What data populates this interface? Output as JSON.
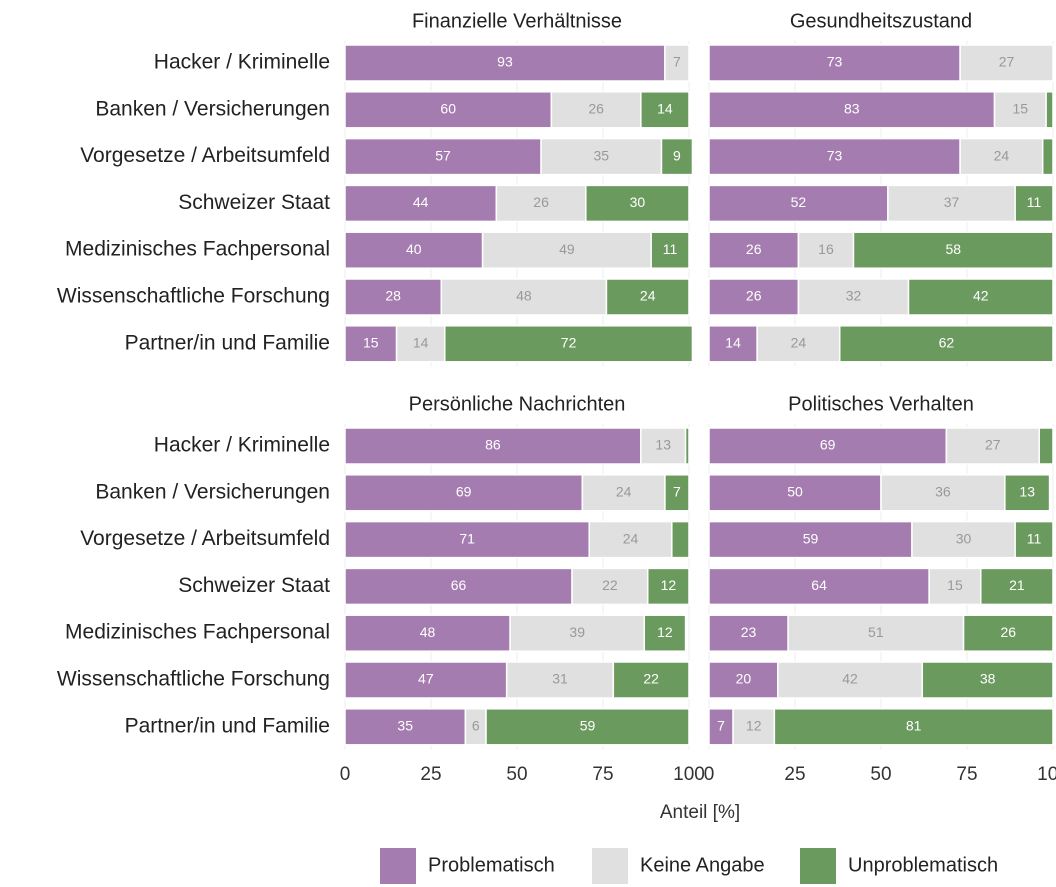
{
  "categories": [
    "Hacker / Kriminelle",
    "Banken / Versicherungen",
    "Vorgesetze / Arbeitsumfeld",
    "Schweizer Staat",
    "Medizinisches Fachpersonal",
    "Wissenschaftliche Forschung",
    "Partner/in und Familie"
  ],
  "xlim": [
    0,
    100
  ],
  "xticks": [
    0,
    25,
    50,
    75,
    100
  ],
  "xlabel": "Anteil [%]",
  "grid": true,
  "legend": [
    {
      "name": "Problematisch",
      "color": "#a57cb0"
    },
    {
      "name": "Keine Angabe",
      "color": "#e0e0e0"
    },
    {
      "name": "Unproblematisch",
      "color": "#6b9a5e"
    }
  ],
  "chart_data": [
    {
      "type": "bar",
      "title": "Finanzielle Verhältnisse",
      "series": [
        {
          "values": [
            93,
            60,
            57,
            44,
            40,
            28,
            15
          ],
          "value_labels": [
            "93",
            "60",
            "57",
            "44",
            "40",
            "28",
            "15"
          ]
        },
        {
          "values": [
            7,
            26,
            35,
            26,
            49,
            48,
            14
          ],
          "value_labels": [
            "7",
            "26",
            "35",
            "26",
            "49",
            "48",
            "14"
          ]
        },
        {
          "values": [
            0,
            14,
            9,
            30,
            11,
            24,
            72
          ],
          "value_labels": [
            null,
            "14",
            "9",
            "30",
            "11",
            "24",
            "72"
          ]
        }
      ]
    },
    {
      "type": "bar",
      "title": "Gesundheitszustand",
      "series": [
        {
          "values": [
            73,
            83,
            73,
            52,
            26,
            26,
            14
          ],
          "value_labels": [
            "73",
            "83",
            "73",
            "52",
            "26",
            "26",
            "14"
          ]
        },
        {
          "values": [
            27,
            15,
            24,
            37,
            16,
            32,
            24
          ],
          "value_labels": [
            "27",
            "15",
            "24",
            "37",
            "16",
            "32",
            "24"
          ]
        },
        {
          "values": [
            0,
            2,
            3,
            11,
            58,
            42,
            62
          ],
          "value_labels": [
            null,
            null,
            null,
            "11",
            "58",
            "42",
            "62"
          ]
        }
      ]
    },
    {
      "type": "bar",
      "title": "Persönliche Nachrichten",
      "series": [
        {
          "values": [
            86,
            69,
            71,
            66,
            48,
            47,
            35
          ],
          "value_labels": [
            "86",
            "69",
            "71",
            "66",
            "48",
            "47",
            "35"
          ]
        },
        {
          "values": [
            13,
            24,
            24,
            22,
            39,
            31,
            6
          ],
          "value_labels": [
            "13",
            "24",
            "24",
            "22",
            "39",
            "31",
            "6"
          ]
        },
        {
          "values": [
            1,
            7,
            5,
            12,
            12,
            22,
            59
          ],
          "value_labels": [
            null,
            "7",
            null,
            "12",
            "12",
            "22",
            "59"
          ]
        }
      ]
    },
    {
      "type": "bar",
      "title": "Politisches Verhalten",
      "series": [
        {
          "values": [
            69,
            50,
            59,
            64,
            23,
            20,
            7
          ],
          "value_labels": [
            "69",
            "50",
            "59",
            "64",
            "23",
            "20",
            "7"
          ]
        },
        {
          "values": [
            27,
            36,
            30,
            15,
            51,
            42,
            12
          ],
          "value_labels": [
            "27",
            "36",
            "30",
            "15",
            "51",
            "42",
            "12"
          ]
        },
        {
          "values": [
            4,
            13,
            11,
            21,
            26,
            38,
            81
          ],
          "value_labels": [
            null,
            "13",
            "11",
            "21",
            "26",
            "38",
            "81"
          ]
        }
      ]
    }
  ]
}
